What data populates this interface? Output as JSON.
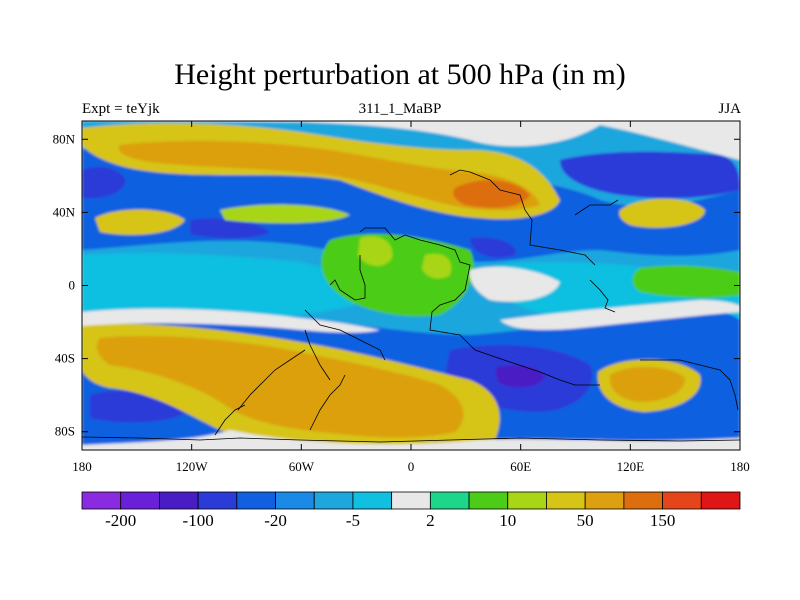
{
  "title": "Height perturbation at 500 hPa (in m)",
  "left_string": "Expt = teYjk",
  "center_string": "311_1_MaBP",
  "right_string": "JJA",
  "x_ticks": [
    {
      "lon": -180,
      "label": "180"
    },
    {
      "lon": -120,
      "label": "120W"
    },
    {
      "lon": -60,
      "label": "60W"
    },
    {
      "lon": 0,
      "label": "0"
    },
    {
      "lon": 60,
      "label": "60E"
    },
    {
      "lon": 120,
      "label": "120E"
    },
    {
      "lon": 180,
      "label": "180"
    }
  ],
  "y_ticks": [
    {
      "lat": 80,
      "label": "80N"
    },
    {
      "lat": 40,
      "label": "40N"
    },
    {
      "lat": 0,
      "label": "0"
    },
    {
      "lat": -40,
      "label": "40S"
    },
    {
      "lat": -80,
      "label": "80S"
    }
  ],
  "colorbar": {
    "colors": [
      "#8a2be2",
      "#6a1fd8",
      "#4a1dc4",
      "#2a3bd8",
      "#1060e0",
      "#1a8ae6",
      "#1fa6de",
      "#11bfe0",
      "#e8e8e8",
      "#1dd68a",
      "#4ccc16",
      "#a8d617",
      "#d6c416",
      "#dca010",
      "#dc6e0e",
      "#e5451a",
      "#e01515"
    ],
    "labels": [
      {
        "after_box": 1,
        "text": "-200"
      },
      {
        "after_box": 3,
        "text": "-100"
      },
      {
        "after_box": 5,
        "text": "-20"
      },
      {
        "after_box": 7,
        "text": "-5"
      },
      {
        "after_box": 9,
        "text": "2"
      },
      {
        "after_box": 11,
        "text": "10"
      },
      {
        "after_box": 13,
        "text": "50"
      },
      {
        "after_box": 15,
        "text": "150"
      }
    ]
  },
  "field_colors": {
    "light_grey": "#e8e8e8",
    "cyan": "#11bfe0",
    "light_blue": "#1fa6de",
    "blue": "#1a8ae6",
    "mid_blue": "#1060e0",
    "dark_blue": "#2a3bd8",
    "indigo": "#4a1dc4",
    "teal": "#1dd68a",
    "green": "#4ccc16",
    "yellow_green": "#a8d617",
    "yellow": "#d6c416",
    "orange": "#dca010",
    "dark_orange": "#dc6e0e"
  }
}
